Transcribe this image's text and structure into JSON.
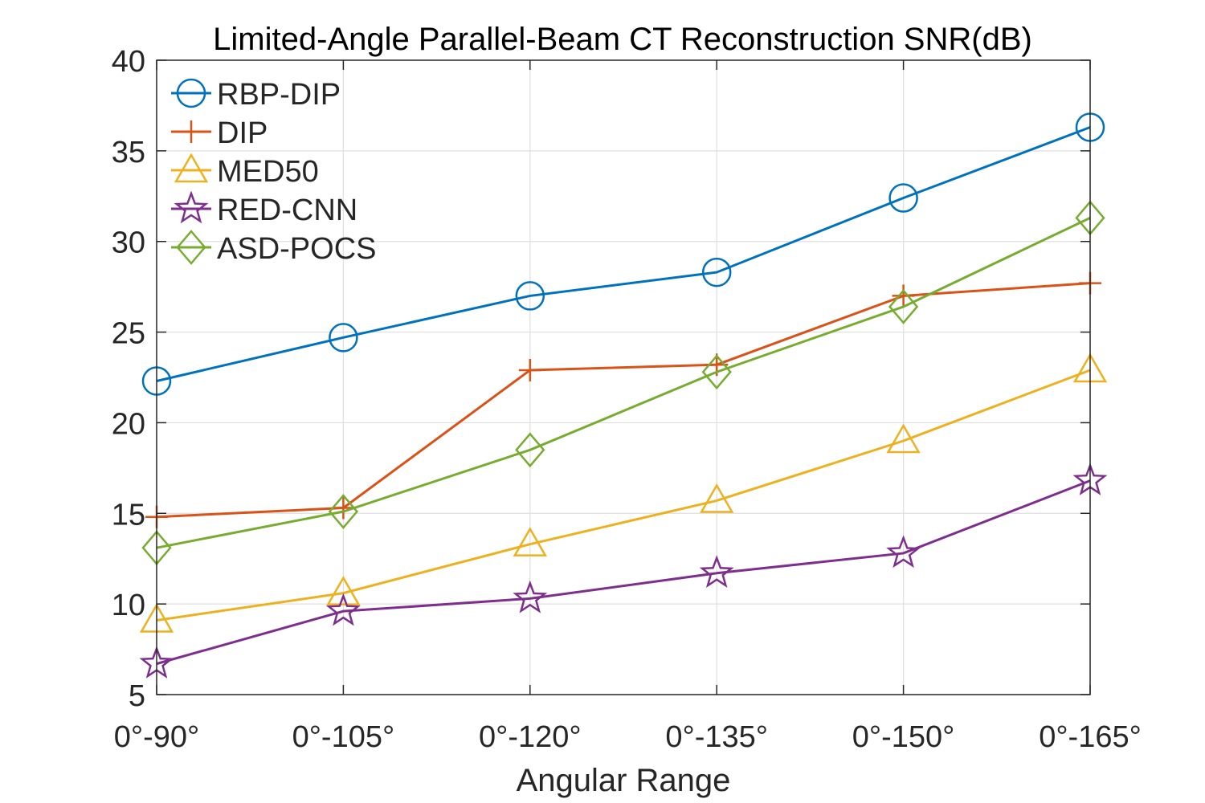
{
  "chart_data": {
    "type": "line",
    "title": "Limited-Angle Parallel-Beam CT Reconstruction SNR(dB)",
    "xlabel": "Angular Range",
    "ylabel": "",
    "categories": [
      "0°-90°",
      "0°-105°",
      "0°-120°",
      "0°-135°",
      "0°-150°",
      "0°-165°"
    ],
    "ylim": [
      5,
      40
    ],
    "yticks": [
      5,
      10,
      15,
      20,
      25,
      30,
      35,
      40
    ],
    "grid": true,
    "legend_position": "top-left",
    "series": [
      {
        "name": "RBP-DIP",
        "color": "#0072BD",
        "marker": "circle",
        "values": [
          22.3,
          24.7,
          27.0,
          28.3,
          32.4,
          36.3
        ]
      },
      {
        "name": "DIP",
        "color": "#D95319",
        "marker": "plus",
        "values": [
          14.8,
          15.3,
          22.9,
          23.2,
          27.0,
          27.7
        ]
      },
      {
        "name": "MED50",
        "color": "#EDB120",
        "marker": "triangle",
        "values": [
          9.1,
          10.6,
          13.3,
          15.7,
          19.0,
          22.9
        ]
      },
      {
        "name": "RED-CNN",
        "color": "#7E2F8E",
        "marker": "star",
        "values": [
          6.7,
          9.6,
          10.3,
          11.7,
          12.8,
          16.8
        ]
      },
      {
        "name": "ASD-POCS",
        "color": "#77AC30",
        "marker": "diamond",
        "values": [
          13.1,
          15.1,
          18.5,
          22.8,
          26.4,
          31.3
        ]
      }
    ]
  }
}
